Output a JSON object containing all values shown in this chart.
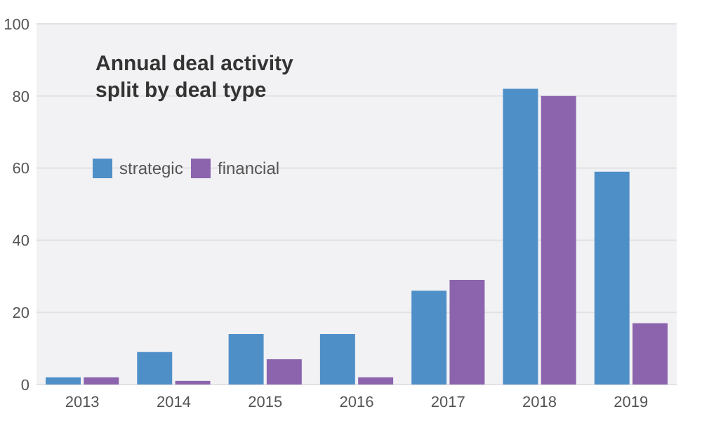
{
  "chart_data": {
    "type": "bar",
    "title": "Annual deal activity\nsplit by deal type",
    "categories": [
      "2013",
      "2014",
      "2015",
      "2016",
      "2017",
      "2018",
      "2019"
    ],
    "series": [
      {
        "name": "strategic",
        "color": "#4f8fc8",
        "values": [
          2,
          9,
          14,
          14,
          26,
          82,
          59
        ]
      },
      {
        "name": "financial",
        "color": "#8b64ad",
        "values": [
          2,
          1,
          7,
          2,
          29,
          80,
          17
        ]
      }
    ],
    "ylim": [
      0,
      100
    ],
    "yticks": [
      0,
      20,
      40,
      60,
      80,
      100
    ],
    "grid": "y",
    "legend": "top left"
  }
}
